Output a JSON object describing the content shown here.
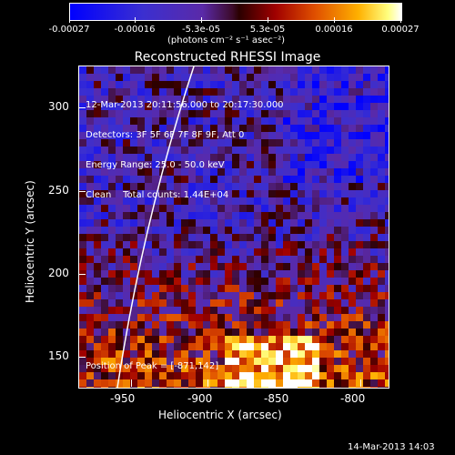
{
  "colorbar": {
    "labels": [
      "-0.00027",
      "-0.00016",
      "-5.3e-05",
      "5.3e-05",
      "0.00016",
      "0.00027"
    ],
    "units": "(photons cm⁻² s⁻¹ asec⁻²)"
  },
  "plot": {
    "title": "Reconstructed RHESSI Image",
    "info_lines": [
      "12-Mar-2013 20:11:56.000 to 20:17:30.000",
      "Detectors: 3F 5F 6F 7F 8F 9F, Att 0",
      "Energy Range: 25.0 - 50.0 keV",
      "Clean    Total counts: 1.44E+04"
    ],
    "peak_text": "Position of Peak = [-871,142]",
    "ylabel": "Heliocentric Y (arcsec)",
    "xlabel": "Heliocentric X (arcsec)",
    "ytick_labels": [
      "150",
      "200",
      "250",
      "300"
    ],
    "xtick_labels": [
      "-950",
      "-900",
      "-850",
      "-800"
    ]
  },
  "footer": {
    "timestamp": "14-Mar-2013 14:03"
  }
}
